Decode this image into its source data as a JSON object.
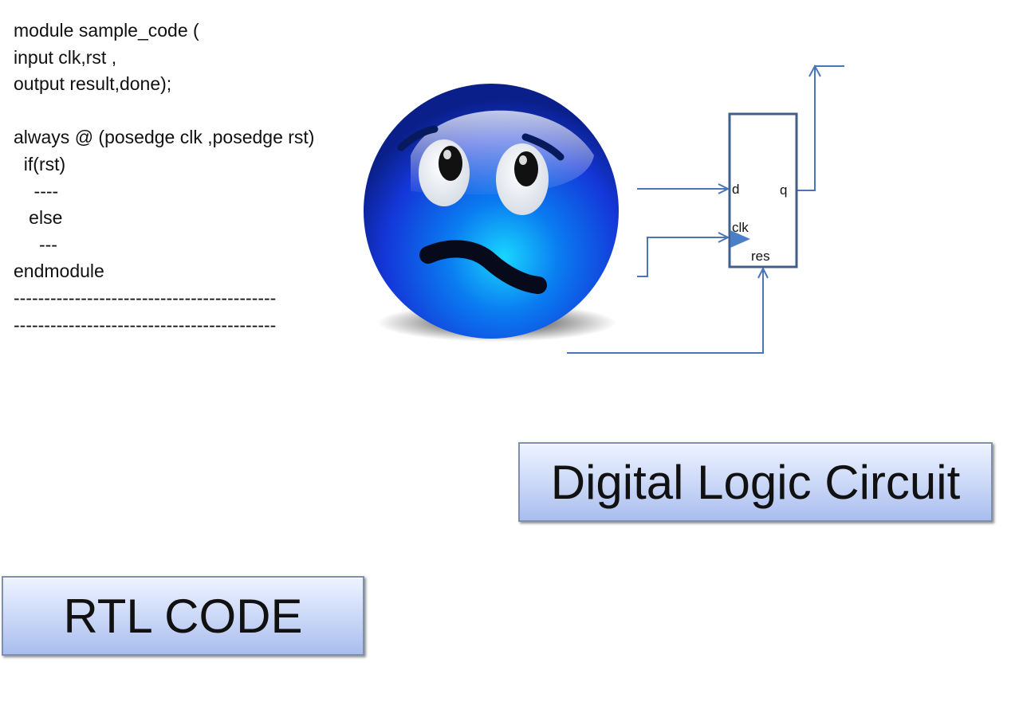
{
  "code": {
    "lines": [
      "module sample_code (",
      "input clk,rst ,",
      "output result,done);",
      "",
      "always @ (posedge clk ,posedge rst)",
      "  if(rst)",
      "    ----",
      "   else",
      "     ---",
      "endmodule",
      "-------------------------------------------",
      "-------------------------------------------"
    ]
  },
  "emoji": {
    "icon": "worried-face-icon",
    "color": "#1a3fe0"
  },
  "circuit": {
    "pins": {
      "d": "d",
      "q": "q",
      "clk": "clk",
      "res": "res"
    },
    "line_color": "#4a76b8",
    "box_color": "#3f5f8f"
  },
  "labels": {
    "digital": "Digital Logic Circuit",
    "rtl": "RTL CODE"
  }
}
